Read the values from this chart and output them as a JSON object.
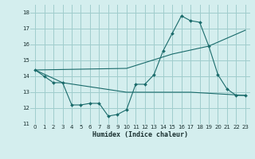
{
  "xlabel": "Humidex (Indice chaleur)",
  "bg_color": "#d4eeee",
  "grid_color": "#a0cccc",
  "line_color": "#1a6b6b",
  "xlim": [
    -0.5,
    23.5
  ],
  "ylim": [
    11,
    18.5
  ],
  "yticks": [
    11,
    12,
    13,
    14,
    15,
    16,
    17,
    18
  ],
  "xticks": [
    0,
    1,
    2,
    3,
    4,
    5,
    6,
    7,
    8,
    9,
    10,
    11,
    12,
    13,
    14,
    15,
    16,
    17,
    18,
    19,
    20,
    21,
    22,
    23
  ],
  "line1_x": [
    0,
    1,
    2,
    3,
    4,
    5,
    6,
    7,
    8,
    9,
    10,
    11,
    12,
    13,
    14,
    15,
    16,
    17,
    18,
    19,
    20,
    21,
    22,
    23
  ],
  "line1_y": [
    14.4,
    14.0,
    13.6,
    13.6,
    12.2,
    12.2,
    12.3,
    12.3,
    11.5,
    11.6,
    11.9,
    13.5,
    13.5,
    14.1,
    15.6,
    16.7,
    17.8,
    17.5,
    17.4,
    15.9,
    14.1,
    13.2,
    12.8,
    12.8
  ],
  "line2_x": [
    0,
    3,
    10,
    17,
    20,
    23
  ],
  "line2_y": [
    14.4,
    13.6,
    13.0,
    13.0,
    12.9,
    12.8
  ],
  "line3_x": [
    0,
    10,
    15,
    19,
    23
  ],
  "line3_y": [
    14.4,
    14.5,
    15.4,
    15.9,
    16.9
  ],
  "marker_x": [
    0,
    1,
    2,
    3,
    4,
    5,
    6,
    7,
    8,
    9,
    10,
    11,
    12,
    13,
    14,
    15,
    16,
    17,
    18,
    19,
    20,
    21,
    22,
    23
  ],
  "marker_y": [
    14.4,
    14.0,
    13.6,
    13.6,
    12.2,
    12.2,
    12.3,
    12.3,
    11.5,
    11.6,
    11.9,
    13.5,
    13.5,
    14.1,
    15.6,
    16.7,
    17.8,
    17.5,
    17.4,
    15.9,
    14.1,
    13.2,
    12.8,
    12.8
  ]
}
